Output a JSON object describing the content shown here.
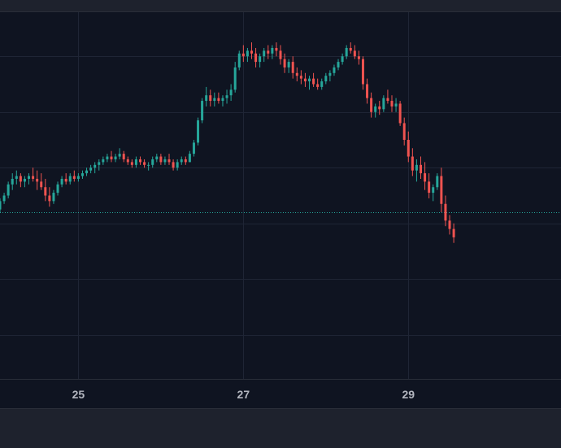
{
  "chart_data": {
    "type": "candlestick",
    "x_tick_labels": [
      "25",
      "27",
      "29"
    ],
    "x_tick_positions": [
      25,
      27,
      29
    ],
    "x_range": [
      24.05,
      30.85
    ],
    "y_range": [
      0,
      100
    ],
    "grid": true,
    "horizontal_lines": [
      44
    ],
    "colors": {
      "up": "#26a69a",
      "down": "#ef5350",
      "grid": "#1f2535",
      "price_line": "#26a69a",
      "background": "#0f1421"
    },
    "candles": [
      [
        24.05,
        45,
        49,
        44,
        48
      ],
      [
        24.1,
        48,
        51,
        47,
        50
      ],
      [
        24.15,
        50,
        55,
        49,
        54
      ],
      [
        24.2,
        54,
        58,
        52,
        56
      ],
      [
        24.25,
        56,
        59,
        54,
        57
      ],
      [
        24.3,
        57,
        58,
        53,
        55
      ],
      [
        24.35,
        55,
        57,
        53,
        56
      ],
      [
        24.4,
        56,
        58,
        54,
        57
      ],
      [
        24.45,
        57,
        60,
        55,
        56
      ],
      [
        24.5,
        56,
        59,
        52,
        55
      ],
      [
        24.55,
        55,
        58,
        52,
        53
      ],
      [
        24.6,
        53,
        56,
        48,
        50
      ],
      [
        24.65,
        50,
        53,
        46,
        48
      ],
      [
        24.7,
        48,
        52,
        47,
        51
      ],
      [
        24.75,
        51,
        55,
        50,
        54
      ],
      [
        24.8,
        54,
        57,
        53,
        56
      ],
      [
        24.85,
        56,
        58,
        54,
        55
      ],
      [
        24.9,
        55,
        58,
        54,
        57
      ],
      [
        24.95,
        57,
        59,
        55,
        56
      ],
      [
        25.0,
        56,
        58,
        55,
        57
      ],
      [
        25.05,
        57,
        59,
        56,
        58
      ],
      [
        25.1,
        58,
        60,
        57,
        59
      ],
      [
        25.15,
        59,
        61,
        58,
        60
      ],
      [
        25.2,
        60,
        62,
        58,
        61
      ],
      [
        25.25,
        61,
        63,
        59,
        62
      ],
      [
        25.3,
        62,
        64,
        61,
        63
      ],
      [
        25.35,
        63,
        65,
        62,
        64
      ],
      [
        25.4,
        64,
        66,
        62,
        63
      ],
      [
        25.45,
        63,
        65,
        62,
        64
      ],
      [
        25.5,
        64,
        67,
        63,
        65
      ],
      [
        25.55,
        65,
        66,
        62,
        63
      ],
      [
        25.6,
        63,
        64,
        61,
        62
      ],
      [
        25.65,
        62,
        63,
        60,
        61
      ],
      [
        25.7,
        61,
        64,
        60,
        63
      ],
      [
        25.75,
        63,
        64,
        61,
        62
      ],
      [
        25.8,
        62,
        63,
        60,
        61
      ],
      [
        25.85,
        61,
        62,
        59,
        61
      ],
      [
        25.9,
        61,
        64,
        60,
        63
      ],
      [
        25.95,
        63,
        65,
        62,
        64
      ],
      [
        26.0,
        64,
        65,
        61,
        62
      ],
      [
        26.05,
        62,
        64,
        61,
        63
      ],
      [
        26.1,
        63,
        65,
        61,
        62
      ],
      [
        26.15,
        62,
        63,
        59,
        60
      ],
      [
        26.2,
        60,
        63,
        59,
        62
      ],
      [
        26.25,
        62,
        64,
        61,
        63
      ],
      [
        26.3,
        63,
        64,
        61,
        62
      ],
      [
        26.35,
        62,
        66,
        62,
        65
      ],
      [
        26.4,
        65,
        70,
        64,
        69
      ],
      [
        26.45,
        69,
        78,
        68,
        77
      ],
      [
        26.5,
        77,
        85,
        76,
        84
      ],
      [
        26.55,
        84,
        89,
        82,
        86
      ],
      [
        26.6,
        86,
        88,
        82,
        84
      ],
      [
        26.65,
        84,
        87,
        82,
        85
      ],
      [
        26.7,
        85,
        87,
        83,
        84
      ],
      [
        26.75,
        84,
        86,
        82,
        85
      ],
      [
        26.8,
        85,
        88,
        83,
        86
      ],
      [
        26.85,
        86,
        90,
        84,
        88
      ],
      [
        26.9,
        88,
        98,
        87,
        96
      ],
      [
        26.95,
        96,
        102,
        95,
        101
      ],
      [
        27.0,
        101,
        104,
        98,
        100
      ],
      [
        27.05,
        100,
        103,
        98,
        102
      ],
      [
        27.1,
        102,
        105,
        99,
        101
      ],
      [
        27.15,
        101,
        103,
        96,
        98
      ],
      [
        27.2,
        98,
        101,
        96,
        100
      ],
      [
        27.25,
        100,
        103,
        98,
        102
      ],
      [
        27.3,
        102,
        104,
        99,
        101
      ],
      [
        27.35,
        101,
        104,
        99,
        103
      ],
      [
        27.4,
        103,
        105,
        100,
        102
      ],
      [
        27.45,
        102,
        104,
        97,
        99
      ],
      [
        27.5,
        99,
        101,
        94,
        96
      ],
      [
        27.55,
        96,
        99,
        94,
        98
      ],
      [
        27.6,
        98,
        100,
        92,
        94
      ],
      [
        27.65,
        94,
        96,
        91,
        93
      ],
      [
        27.7,
        93,
        95,
        90,
        92
      ],
      [
        27.75,
        92,
        94,
        89,
        91
      ],
      [
        27.8,
        91,
        93,
        88,
        92
      ],
      [
        27.85,
        92,
        94,
        89,
        90
      ],
      [
        27.9,
        90,
        92,
        88,
        89
      ],
      [
        27.95,
        89,
        92,
        88,
        91
      ],
      [
        28.0,
        91,
        94,
        90,
        93
      ],
      [
        28.05,
        93,
        95,
        91,
        94
      ],
      [
        28.1,
        94,
        97,
        93,
        96
      ],
      [
        28.15,
        96,
        99,
        95,
        98
      ],
      [
        28.2,
        98,
        101,
        97,
        100
      ],
      [
        28.25,
        100,
        104,
        99,
        103
      ],
      [
        28.3,
        103,
        105,
        101,
        102
      ],
      [
        28.35,
        102,
        104,
        99,
        100
      ],
      [
        28.4,
        100,
        102,
        97,
        99
      ],
      [
        28.45,
        99,
        100,
        88,
        90
      ],
      [
        28.5,
        90,
        92,
        83,
        85
      ],
      [
        28.55,
        85,
        87,
        78,
        80
      ],
      [
        28.6,
        80,
        83,
        78,
        82
      ],
      [
        28.65,
        82,
        84,
        79,
        81
      ],
      [
        28.7,
        81,
        86,
        80,
        85
      ],
      [
        28.75,
        85,
        88,
        83,
        84
      ],
      [
        28.8,
        84,
        86,
        80,
        82
      ],
      [
        28.85,
        82,
        85,
        80,
        83
      ],
      [
        28.9,
        83,
        84,
        75,
        76
      ],
      [
        28.95,
        76,
        78,
        68,
        70
      ],
      [
        29.0,
        70,
        73,
        62,
        64
      ],
      [
        29.05,
        64,
        67,
        57,
        59
      ],
      [
        29.1,
        59,
        63,
        55,
        61
      ],
      [
        29.15,
        61,
        64,
        56,
        58
      ],
      [
        29.2,
        58,
        62,
        52,
        55
      ],
      [
        29.25,
        55,
        58,
        49,
        51
      ],
      [
        29.3,
        51,
        54,
        48,
        53
      ],
      [
        29.35,
        53,
        58,
        52,
        57
      ],
      [
        29.4,
        57,
        60,
        44,
        47
      ],
      [
        29.45,
        47,
        50,
        39,
        41
      ],
      [
        29.5,
        41,
        43,
        36,
        38
      ],
      [
        29.55,
        38,
        40,
        33,
        35
      ]
    ]
  }
}
